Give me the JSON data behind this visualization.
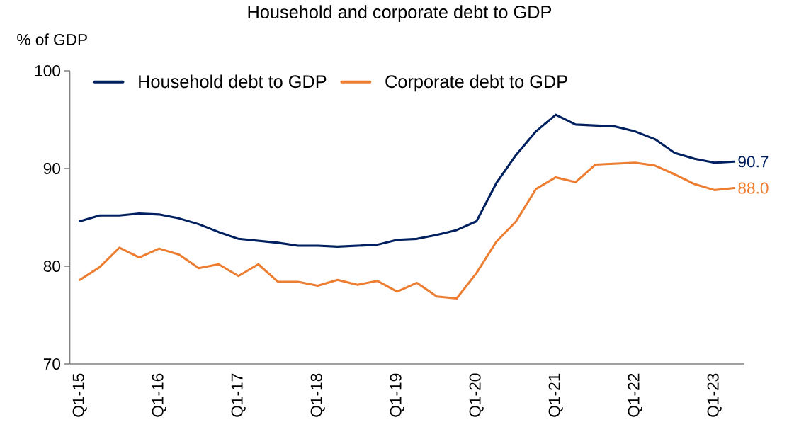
{
  "chart_data": {
    "type": "line",
    "title": "Household and corporate debt to GDP",
    "ylabel": "% of GDP",
    "categories": [
      "Q1-15",
      null,
      null,
      null,
      "Q1-16",
      null,
      null,
      null,
      "Q1-17",
      null,
      null,
      null,
      "Q1-18",
      null,
      null,
      null,
      "Q1-19",
      null,
      null,
      null,
      "Q1-20",
      null,
      null,
      null,
      "Q1-21",
      null,
      null,
      null,
      "Q1-22",
      null,
      null,
      null,
      "Q1-23",
      null
    ],
    "series": [
      {
        "name": "Household debt to GDP",
        "color": "#002060",
        "values": [
          84.6,
          85.2,
          85.2,
          85.4,
          85.3,
          84.9,
          84.3,
          83.5,
          82.8,
          82.6,
          82.4,
          82.1,
          82.1,
          82.0,
          82.1,
          82.2,
          82.7,
          82.8,
          83.2,
          83.7,
          84.6,
          88.5,
          91.4,
          93.8,
          95.5,
          94.5,
          94.4,
          94.3,
          93.8,
          93.0,
          91.6,
          91.0,
          90.6,
          90.7
        ],
        "value_labels": [
          null,
          null,
          null,
          null,
          null,
          null,
          null,
          null,
          null,
          null,
          null,
          null,
          null,
          null,
          null,
          null,
          null,
          null,
          null,
          null,
          null,
          null,
          null,
          null,
          null,
          null,
          null,
          null,
          null,
          null,
          null,
          null,
          null,
          "90.7"
        ]
      },
      {
        "name": "Corporate debt to GDP",
        "color": "#ed7d31",
        "values": [
          78.6,
          79.9,
          81.9,
          80.9,
          81.8,
          81.2,
          79.8,
          80.2,
          79.0,
          80.2,
          78.4,
          78.4,
          78.0,
          78.6,
          78.1,
          78.5,
          77.4,
          78.3,
          76.9,
          76.7,
          79.3,
          82.5,
          84.6,
          87.9,
          89.1,
          88.6,
          90.4,
          90.5,
          90.6,
          90.3,
          89.4,
          88.4,
          87.8,
          88.0
        ],
        "value_labels": [
          null,
          null,
          null,
          null,
          null,
          null,
          null,
          null,
          null,
          null,
          null,
          null,
          null,
          null,
          null,
          null,
          null,
          null,
          null,
          null,
          null,
          null,
          null,
          null,
          null,
          null,
          null,
          null,
          null,
          null,
          null,
          null,
          null,
          "88.0"
        ]
      }
    ],
    "ylim": [
      70,
      100
    ],
    "yticks": [
      70,
      80,
      90,
      100
    ],
    "legend": "top",
    "grid": false,
    "marker": "none",
    "line_style": "solid"
  }
}
